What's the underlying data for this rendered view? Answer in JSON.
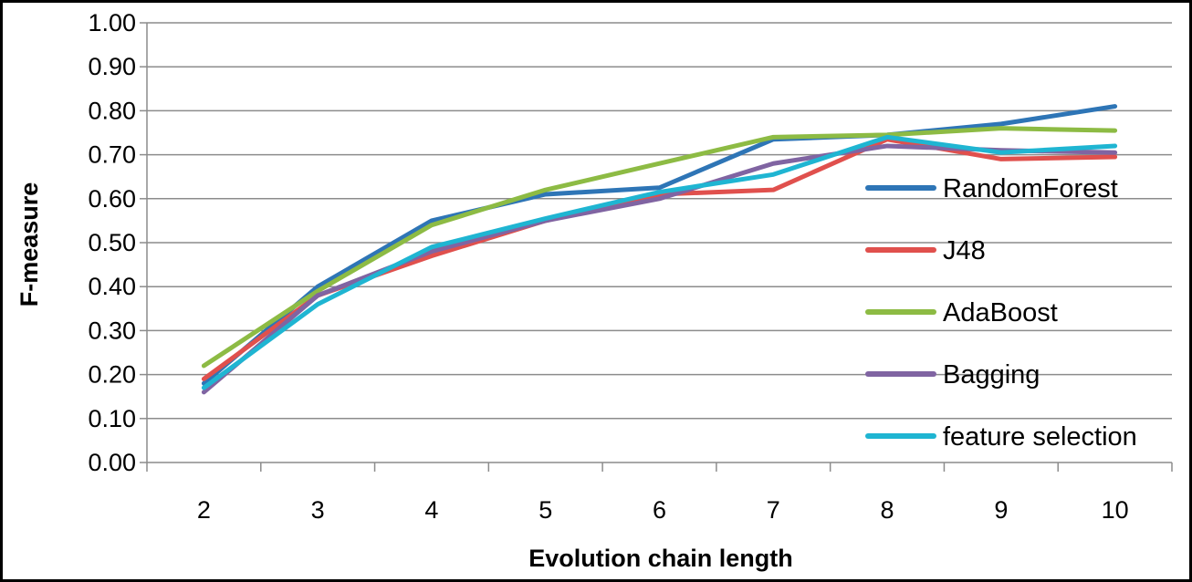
{
  "chart_data": {
    "type": "line",
    "title": "",
    "xlabel": "Evolution chain length",
    "ylabel": "F-measure",
    "x": [
      "2",
      "3",
      "4",
      "5",
      "6",
      "7",
      "8",
      "9",
      "10"
    ],
    "ylim": [
      0,
      1
    ],
    "yticks": [
      "0.00",
      "0.10",
      "0.20",
      "0.30",
      "0.40",
      "0.50",
      "0.60",
      "0.70",
      "0.80",
      "0.90",
      "1.00"
    ],
    "grid": true,
    "legend_position": "right",
    "series": [
      {
        "name": "RandomForest",
        "color": "#2E75B6",
        "values": [
          0.18,
          0.4,
          0.55,
          0.61,
          0.625,
          0.735,
          0.745,
          0.77,
          0.81
        ]
      },
      {
        "name": "J48",
        "color": "#E0504D",
        "values": [
          0.19,
          0.38,
          0.47,
          0.55,
          0.61,
          0.62,
          0.735,
          0.69,
          0.695
        ]
      },
      {
        "name": "AdaBoost",
        "color": "#8DBB44",
        "values": [
          0.22,
          0.39,
          0.54,
          0.62,
          0.68,
          0.74,
          0.745,
          0.76,
          0.755
        ]
      },
      {
        "name": "Bagging",
        "color": "#8064A2",
        "values": [
          0.16,
          0.38,
          0.48,
          0.55,
          0.6,
          0.68,
          0.72,
          0.71,
          0.705
        ]
      },
      {
        "name": "feature selection",
        "color": "#1FB5D2",
        "values": [
          0.17,
          0.36,
          0.49,
          0.555,
          0.615,
          0.655,
          0.74,
          0.705,
          0.72
        ]
      }
    ]
  }
}
